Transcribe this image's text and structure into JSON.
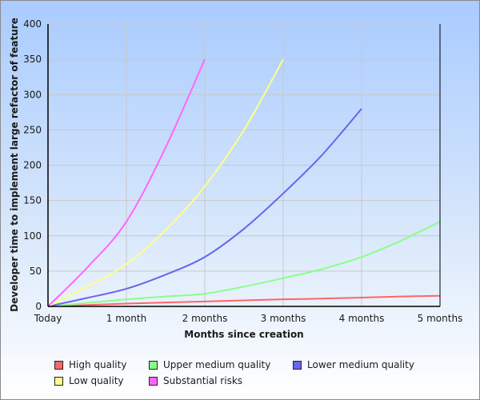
{
  "chart_data": {
    "type": "line",
    "title": "",
    "xlabel": "Months since creation",
    "ylabel": "Developer time to implement large refactor of feature",
    "x_tick_labels": [
      "Today",
      "1 month",
      "2 months",
      "3 months",
      "4 months",
      "5 months"
    ],
    "y_tick_labels": [
      "0",
      "50",
      "100",
      "150",
      "200",
      "250",
      "300",
      "350",
      "400"
    ],
    "x": [
      0,
      0.5,
      1,
      1.5,
      2,
      2.5,
      3,
      3.5,
      4,
      4.5,
      5
    ],
    "xlim": [
      0,
      5
    ],
    "ylim": [
      0,
      400
    ],
    "grid": true,
    "legend_position": "bottom",
    "series": [
      {
        "name": "High quality",
        "color": "#ff6666",
        "values": [
          0,
          2,
          4,
          5.5,
          7,
          8.5,
          10,
          11,
          12.5,
          14,
          15
        ]
      },
      {
        "name": "Upper medium quality",
        "color": "#88ff88",
        "values": [
          0,
          5,
          10,
          14,
          18,
          28,
          40,
          53,
          70,
          93,
          120
        ]
      },
      {
        "name": "Lower medium quality",
        "color": "#6666ee",
        "values": [
          0,
          12,
          25,
          45,
          70,
          110,
          160,
          215,
          280
        ]
      },
      {
        "name": "Low quality",
        "color": "#ffff88",
        "values": [
          0,
          28,
          60,
          108,
          170,
          250,
          350
        ]
      },
      {
        "name": "Substantial risks",
        "color": "#ff66ff",
        "values": [
          0,
          55,
          120,
          225,
          350
        ]
      }
    ]
  },
  "legend": {
    "items": [
      {
        "label": "High quality",
        "color": "#ff6666"
      },
      {
        "label": "Upper medium quality",
        "color": "#88ff88"
      },
      {
        "label": "Lower medium quality",
        "color": "#6666ee"
      },
      {
        "label": "Low quality",
        "color": "#ffff88"
      },
      {
        "label": "Substantial risks",
        "color": "#ff66ff"
      }
    ]
  }
}
